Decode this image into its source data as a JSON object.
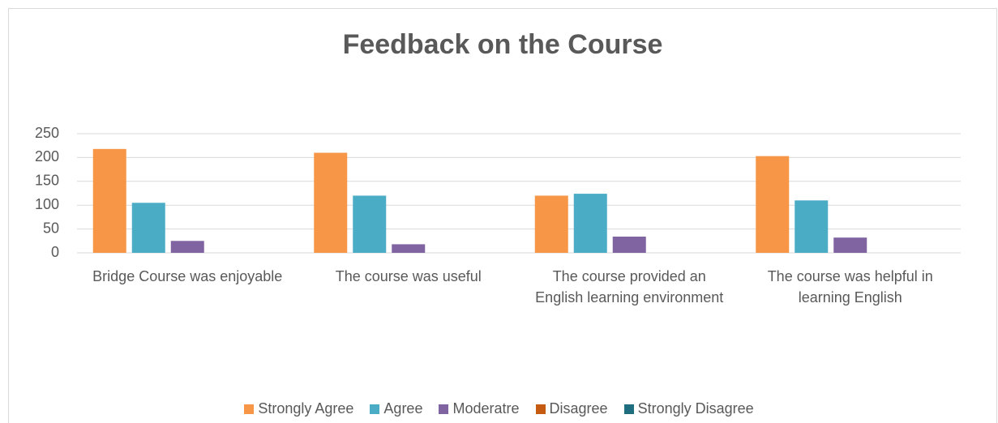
{
  "chart_data": {
    "type": "bar",
    "title": "Feedback on the Course",
    "categories": [
      "Bridge Course was enjoyable",
      "The course was useful",
      "The course provided an English learning environment",
      "The course was helpful in learning English"
    ],
    "series": [
      {
        "name": "Strongly Agree",
        "color": "#f79646",
        "values": [
          218,
          210,
          120,
          203
        ]
      },
      {
        "name": "Agree",
        "color": "#4bacc6",
        "values": [
          105,
          120,
          124,
          110
        ]
      },
      {
        "name": "Moderatre",
        "color": "#8064a2",
        "values": [
          25,
          18,
          34,
          32
        ]
      },
      {
        "name": "Disagree",
        "color": "#c55a11",
        "values": [
          0,
          0,
          0,
          0
        ]
      },
      {
        "name": "Strongly Disagree",
        "color": "#1f6e7f",
        "values": [
          0,
          0,
          0,
          0
        ]
      }
    ],
    "ylim": [
      0,
      250
    ],
    "yticks": [
      0,
      50,
      100,
      150,
      200,
      250
    ],
    "grid": true,
    "legend": "bottom"
  }
}
